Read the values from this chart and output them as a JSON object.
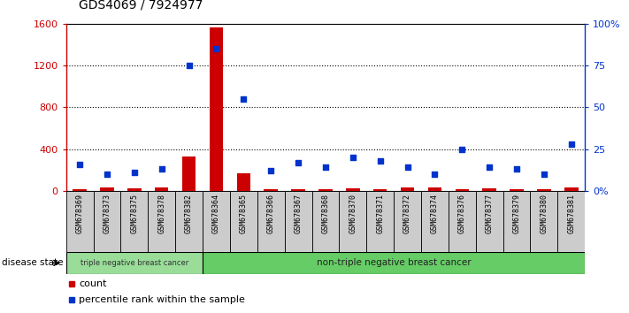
{
  "title": "GDS4069 / 7924977",
  "samples": [
    "GSM678369",
    "GSM678373",
    "GSM678375",
    "GSM678378",
    "GSM678382",
    "GSM678364",
    "GSM678365",
    "GSM678366",
    "GSM678367",
    "GSM678368",
    "GSM678370",
    "GSM678371",
    "GSM678372",
    "GSM678374",
    "GSM678376",
    "GSM678377",
    "GSM678379",
    "GSM678380",
    "GSM678381"
  ],
  "counts": [
    20,
    30,
    22,
    30,
    330,
    1565,
    170,
    15,
    20,
    18,
    25,
    20,
    30,
    35,
    20,
    25,
    20,
    15,
    35
  ],
  "percentiles": [
    16,
    10,
    11,
    13,
    75,
    85,
    55,
    12,
    17,
    14,
    20,
    18,
    14,
    10,
    25,
    14,
    13,
    10,
    28
  ],
  "triple_neg_count": 5,
  "ylim_left": [
    0,
    1600
  ],
  "ylim_right": [
    0,
    100
  ],
  "yticks_left": [
    0,
    400,
    800,
    1200,
    1600
  ],
  "yticks_right": [
    0,
    25,
    50,
    75,
    100
  ],
  "ytick_labels_right": [
    "0%",
    "25",
    "50",
    "75",
    "100%"
  ],
  "bar_color_red": "#cc0000",
  "dot_color_blue": "#0033cc",
  "bg_color_plot": "#ffffff",
  "col_header_bg": "#cccccc",
  "triple_neg_bg": "#99dd99",
  "non_triple_neg_bg": "#66cc66",
  "label_triple": "triple negative breast cancer",
  "label_non_triple": "non-triple negative breast cancer",
  "disease_state_label": "disease state",
  "legend_count": "count",
  "legend_percentile": "percentile rank within the sample"
}
